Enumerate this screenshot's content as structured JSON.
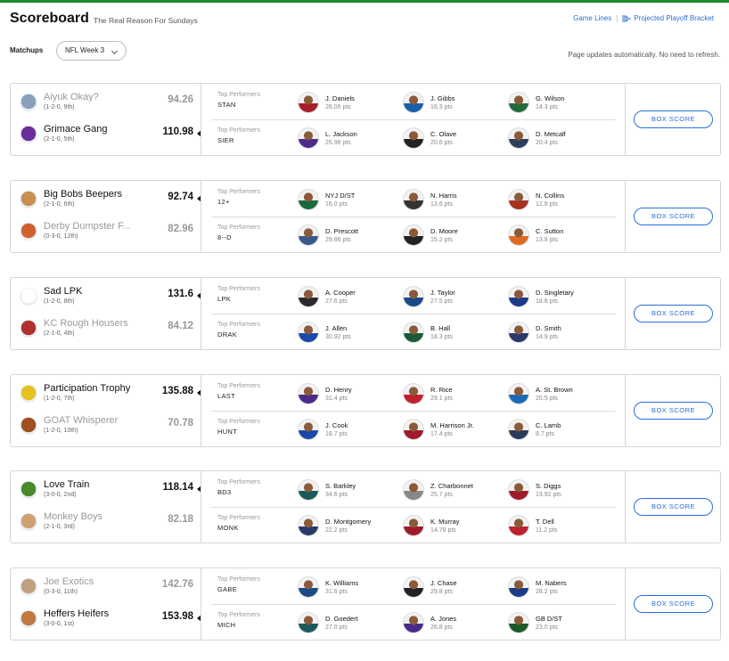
{
  "header": {
    "title": "Scoreboard",
    "subtitle": "The Real Reason For Sundays",
    "links": {
      "game_lines": "Game Lines",
      "bracket": "Projected Playoff Bracket"
    },
    "accent_color": "#1b8a2a",
    "link_color": "#2a6fd6"
  },
  "controls": {
    "matchups_label": "Matchups",
    "week_selected": "NFL Week 3",
    "auto_update_note": "Page updates automatically. No need to refresh."
  },
  "box_score_label": "BOX SCORE",
  "top_performers_label": "Top Performers",
  "matchups": [
    {
      "teams": [
        {
          "name": "Aiyuk Okay?",
          "record": "(1-2-0, 9th)",
          "score": "94.26",
          "winner": false,
          "abbr": "STAN",
          "logo_color": "#8aa0b8",
          "players": [
            {
              "name": "J. Daniels",
              "pts": "28.06 pts",
              "color": "#a81c2a"
            },
            {
              "name": "J. Gibbs",
              "pts": "16.3 pts",
              "color": "#1a5fa8"
            },
            {
              "name": "G. Wilson",
              "pts": "14.3 pts",
              "color": "#1f6b3a"
            }
          ]
        },
        {
          "name": "Grimace Gang",
          "record": "(2-1-0, 5th)",
          "score": "110.98",
          "winner": true,
          "abbr": "SIER",
          "logo_color": "#6a2f9a",
          "players": [
            {
              "name": "L. Jackson",
              "pts": "25.98 pts",
              "color": "#4b2a8a"
            },
            {
              "name": "C. Olave",
              "pts": "20.6 pts",
              "color": "#222222"
            },
            {
              "name": "D. Metcalf",
              "pts": "20.4 pts",
              "color": "#2b3e5a"
            }
          ]
        }
      ]
    },
    {
      "teams": [
        {
          "name": "Big Bobs Beepers",
          "record": "(2-1-0, 6th)",
          "score": "92.74",
          "winner": true,
          "abbr": "12+",
          "logo_color": "#c89050",
          "players": [
            {
              "name": "NYJ D/ST",
              "pts": "16.0 pts",
              "color": "#1a6b3a"
            },
            {
              "name": "N. Harris",
              "pts": "13.6 pts",
              "color": "#333333"
            },
            {
              "name": "N. Collins",
              "pts": "12.6 pts",
              "color": "#a83020"
            }
          ]
        },
        {
          "name": "Derby Dumpster F...",
          "record": "(0-3-0, 12th)",
          "score": "82.96",
          "winner": false,
          "abbr": "8--D",
          "logo_color": "#d06030",
          "players": [
            {
              "name": "D. Prescott",
              "pts": "29.86 pts",
              "color": "#3a5a8a"
            },
            {
              "name": "D. Moore",
              "pts": "15.2 pts",
              "color": "#222222"
            },
            {
              "name": "C. Sutton",
              "pts": "13.8 pts",
              "color": "#e06a20"
            }
          ]
        }
      ]
    },
    {
      "teams": [
        {
          "name": "Sad LPK",
          "record": "(1-2-0, 8th)",
          "score": "131.6",
          "winner": true,
          "abbr": "LPK",
          "logo_color": "#ffffff",
          "players": [
            {
              "name": "A. Cooper",
              "pts": "27.6 pts",
              "color": "#2a2a2a"
            },
            {
              "name": "J. Taylor",
              "pts": "27.5 pts",
              "color": "#1a4a8a"
            },
            {
              "name": "D. Singletary",
              "pts": "18.8 pts",
              "color": "#1a3a8a"
            }
          ]
        },
        {
          "name": "KC Rough Housers",
          "record": "(2-1-0, 4th)",
          "score": "84.12",
          "winner": false,
          "abbr": "DRAK",
          "logo_color": "#b03030",
          "players": [
            {
              "name": "J. Allen",
              "pts": "30.92 pts",
              "color": "#1a4aa8"
            },
            {
              "name": "B. Hall",
              "pts": "18.3 pts",
              "color": "#1a5a3a"
            },
            {
              "name": "D. Smith",
              "pts": "14.9 pts",
              "color": "#2a3a6a"
            }
          ]
        }
      ]
    },
    {
      "teams": [
        {
          "name": "Participation Trophy",
          "record": "(1-2-0, 7th)",
          "score": "135.88",
          "winner": true,
          "abbr": "LAST",
          "logo_color": "#e8c020",
          "players": [
            {
              "name": "D. Henry",
              "pts": "31.4 pts",
              "color": "#4a2a8a"
            },
            {
              "name": "R. Rice",
              "pts": "29.1 pts",
              "color": "#c02030"
            },
            {
              "name": "A. St. Brown",
              "pts": "20.5 pts",
              "color": "#1a6ab8"
            }
          ]
        },
        {
          "name": "GOAT Whisperer",
          "record": "(1-2-0, 10th)",
          "score": "70.78",
          "winner": false,
          "abbr": "HUNT",
          "logo_color": "#a05020",
          "players": [
            {
              "name": "J. Cook",
              "pts": "18.7 pts",
              "color": "#1a4aa8"
            },
            {
              "name": "M. Harrison Jr.",
              "pts": "17.4 pts",
              "color": "#a01a2a"
            },
            {
              "name": "C. Lamb",
              "pts": "8.7 pts",
              "color": "#2a3a5a"
            }
          ]
        }
      ]
    },
    {
      "teams": [
        {
          "name": "Love Train",
          "record": "(3-0-0, 2nd)",
          "score": "118.14",
          "winner": true,
          "abbr": "BD3",
          "logo_color": "#4a8a2a",
          "players": [
            {
              "name": "S. Barkley",
              "pts": "34.6 pts",
              "color": "#1a5a5a"
            },
            {
              "name": "Z. Charbonnet",
              "pts": "25.7 pts",
              "color": "#888888"
            },
            {
              "name": "S. Diggs",
              "pts": "19.92 pts",
              "color": "#a01a2a"
            }
          ]
        },
        {
          "name": "Monkey Boys",
          "record": "(2-1-0, 3rd)",
          "score": "82.18",
          "winner": false,
          "abbr": "MONK",
          "logo_color": "#d0a070",
          "players": [
            {
              "name": "D. Montgomery",
              "pts": "22.2 pts",
              "color": "#2a3a6a"
            },
            {
              "name": "K. Murray",
              "pts": "14.78 pts",
              "color": "#a01a2a"
            },
            {
              "name": "T. Dell",
              "pts": "11.2 pts",
              "color": "#c02030"
            }
          ]
        }
      ]
    },
    {
      "teams": [
        {
          "name": "Joe Exotics",
          "record": "(0-3-0, 11th)",
          "score": "142.76",
          "winner": false,
          "abbr": "GABE",
          "logo_color": "#c0a080",
          "players": [
            {
              "name": "K. Williams",
              "pts": "31.6 pts",
              "color": "#1a4a8a"
            },
            {
              "name": "J. Chase",
              "pts": "29.8 pts",
              "color": "#222222"
            },
            {
              "name": "M. Nabers",
              "pts": "28.2 pts",
              "color": "#1a3a8a"
            }
          ]
        },
        {
          "name": "Heffers Heifers",
          "record": "(3-0-0, 1st)",
          "score": "153.98",
          "winner": true,
          "abbr": "MICH",
          "logo_color": "#c07a40",
          "players": [
            {
              "name": "D. Goedert",
              "pts": "27.0 pts",
              "color": "#1a5a5a"
            },
            {
              "name": "A. Jones",
              "pts": "26.8 pts",
              "color": "#4a2a8a"
            },
            {
              "name": "GB D/ST",
              "pts": "23.0 pts",
              "color": "#1a5a2a"
            }
          ]
        }
      ]
    }
  ]
}
